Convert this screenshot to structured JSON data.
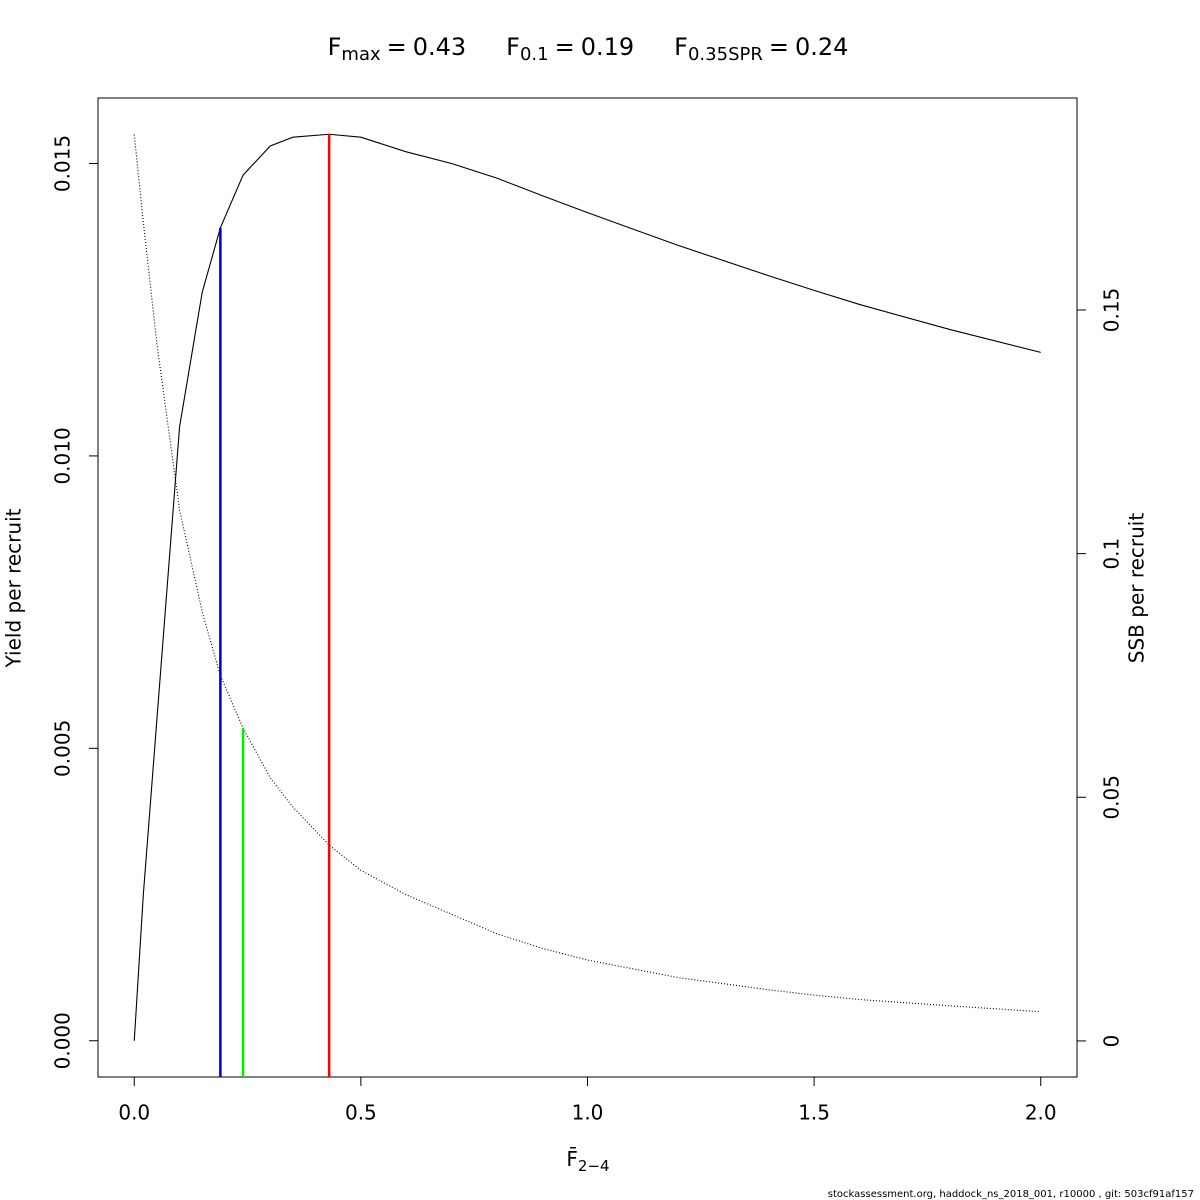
{
  "chart_data": {
    "type": "line",
    "x_label": {
      "symbol": "F̄",
      "subscript": "2−4"
    },
    "y_label": "Yield per recruit",
    "y2_label": "SSB per recruit",
    "footer": "stockassessment.org, haddock_ns_2018_001, r10000 , git: 503cf91af157",
    "x": [
      0,
      0.02,
      0.05,
      0.1,
      0.15,
      0.19,
      0.24,
      0.3,
      0.35,
      0.43,
      0.5,
      0.6,
      0.7,
      0.8,
      0.9,
      1.0,
      1.2,
      1.4,
      1.5,
      1.6,
      1.8,
      2.0
    ],
    "series": [
      {
        "name": "Yield per recruit",
        "color": "#000000",
        "dash": "none",
        "axis": "y",
        "values": [
          0,
          0.0025,
          0.0055,
          0.0105,
          0.0128,
          0.0139,
          0.0148,
          0.0153,
          0.01545,
          0.0155,
          0.01545,
          0.0152,
          0.015,
          0.01475,
          0.01445,
          0.01416,
          0.0136,
          0.01308,
          0.01283,
          0.01259,
          0.01216,
          0.01177
        ]
      },
      {
        "name": "SSB per recruit",
        "color": "#000000",
        "dash": "1 2",
        "axis": "y2",
        "values": [
          0.186,
          0.168,
          0.143,
          0.109,
          0.088,
          0.075,
          0.0642,
          0.054,
          0.048,
          0.0402,
          0.035,
          0.03,
          0.026,
          0.022,
          0.019,
          0.0166,
          0.013,
          0.0105,
          0.0094,
          0.0085,
          0.0072,
          0.006
        ]
      }
    ],
    "reference_lines": [
      {
        "symbol": "F",
        "subscript": "max",
        "relation": "=",
        "x": 0.43,
        "top": 0.0155,
        "axis": "y",
        "color": "#ff0000"
      },
      {
        "symbol": "F",
        "subscript": "0.1",
        "relation": "=",
        "x": 0.19,
        "top": 0.0139,
        "axis": "y",
        "color": "#0000cc"
      },
      {
        "symbol": "F",
        "subscript": "0.35SPR",
        "relation": "=",
        "x": 0.24,
        "top": 0.0642,
        "axis": "y2",
        "color": "#00ee00"
      }
    ],
    "xlim": [
      -0.08,
      2.08
    ],
    "xticks": [
      {
        "value": 0,
        "label": "0.0"
      },
      {
        "value": 0.5,
        "label": "0.5"
      },
      {
        "value": 1,
        "label": "1.0"
      },
      {
        "value": 1.5,
        "label": "1.5"
      },
      {
        "value": 2,
        "label": "2.0"
      }
    ],
    "ylim": [
      -0.00062,
      0.01612
    ],
    "yticks": [
      {
        "value": 0,
        "label": "0.000"
      },
      {
        "value": 0.005,
        "label": "0.005"
      },
      {
        "value": 0.01,
        "label": "0.010"
      },
      {
        "value": 0.015,
        "label": "0.015"
      }
    ],
    "y2lim": [
      -0.0074,
      0.1935
    ],
    "y2ticks": [
      0,
      0.05,
      0.1,
      0.15
    ]
  }
}
